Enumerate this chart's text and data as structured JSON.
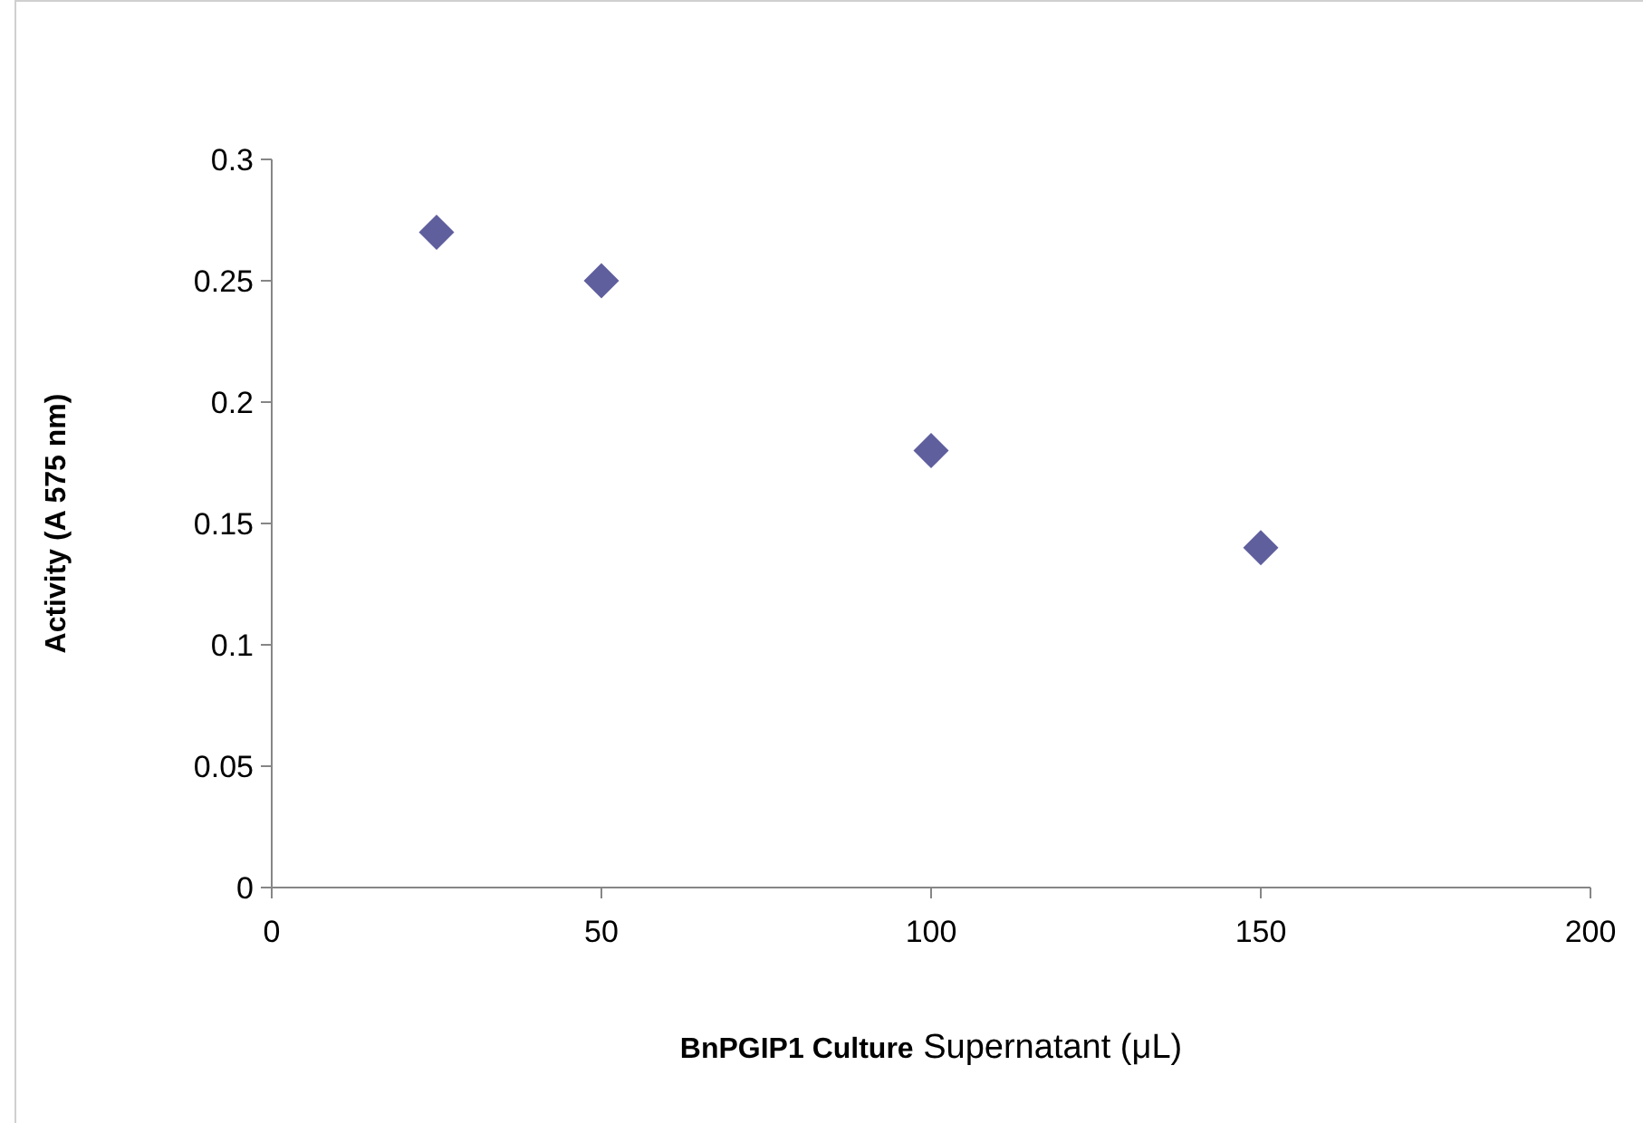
{
  "chart_data": {
    "type": "scatter",
    "xlabel": "BnPGIP1 Culture Supernatant (μL)",
    "ylabel": "Activity (A 575 nm)",
    "x": [
      25,
      50,
      100,
      150
    ],
    "series": [
      {
        "color": "#5f5f9e",
        "values": [
          0.27,
          0.25,
          0.18,
          0.14
        ]
      }
    ],
    "xlim": [
      0,
      200
    ],
    "xticks": [
      0,
      50,
      100,
      150,
      200
    ],
    "ylim": [
      0,
      0.3
    ],
    "yticks": [
      0,
      0.05,
      0.1,
      0.15,
      0.2,
      0.25,
      0.3
    ],
    "marker": "diamond",
    "grid": false
  }
}
